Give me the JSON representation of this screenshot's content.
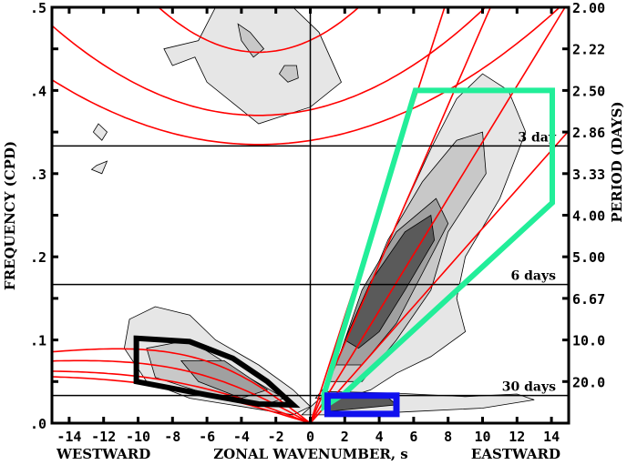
{
  "chart_data": {
    "type": "heatmap",
    "title": "",
    "xlabel": "ZONAL WAVENUMBER, s",
    "ylabel": "FREQUENCY (CPD)",
    "y2label": "PERIOD (DAYS)",
    "x_left_label": "WESTWARD",
    "x_right_label": "EASTWARD",
    "xlim": [
      -15,
      15
    ],
    "ylim": [
      0,
      0.5
    ],
    "xticks": [
      -14,
      -12,
      -10,
      -8,
      -6,
      -4,
      -2,
      0,
      2,
      4,
      6,
      8,
      10,
      12,
      14
    ],
    "xtick_labels": [
      "-14",
      "-12",
      "-10",
      "-8",
      "-6",
      "-4",
      "-2",
      "0",
      "2",
      "4",
      "6",
      "8",
      "10",
      "12",
      "14"
    ],
    "yticks": [
      0,
      0.1,
      0.2,
      0.3,
      0.4,
      0.5
    ],
    "ytick_labels": [
      ".0",
      ".1",
      ".2",
      ".3",
      ".4",
      ".5"
    ],
    "period_ticks": [
      0.5,
      0.45,
      0.4,
      0.35,
      0.3,
      0.25,
      0.2,
      0.15,
      0.1,
      0.05
    ],
    "period_labels": [
      "2.00",
      "2.22",
      "2.50",
      "2.86",
      "3.33",
      "4.00",
      "5.00",
      "6.67",
      "10.0",
      "20.0"
    ],
    "period_lines": [
      {
        "freq": 0.3333,
        "label": "3 day"
      },
      {
        "freq": 0.1667,
        "label": "6 days"
      },
      {
        "freq": 0.0333,
        "label": "30 days"
      }
    ],
    "contour_levels": [
      1.1,
      1.2,
      1.3,
      1.4
    ],
    "contour_colors": [
      "#e6e6e6",
      "#c8c8c8",
      "#a0a0a0",
      "#5a5a5a"
    ],
    "contour_regions": [
      {
        "level": 1.1,
        "points": [
          [
            0.3,
            0.03
          ],
          [
            1.5,
            0.06
          ],
          [
            3,
            0.13
          ],
          [
            5,
            0.24
          ],
          [
            7,
            0.33
          ],
          [
            8.5,
            0.39
          ],
          [
            10,
            0.42
          ],
          [
            11.5,
            0.4
          ],
          [
            12.5,
            0.35
          ],
          [
            11,
            0.27
          ],
          [
            9,
            0.2
          ],
          [
            8.5,
            0.15
          ],
          [
            9,
            0.11
          ],
          [
            7,
            0.08
          ],
          [
            5,
            0.06
          ],
          [
            3.5,
            0.04
          ],
          [
            2,
            0.03
          ]
        ]
      },
      {
        "level": 1.1,
        "points": [
          [
            -3.5,
            0.5
          ],
          [
            -1,
            0.5
          ],
          [
            0.5,
            0.47
          ],
          [
            1.8,
            0.41
          ],
          [
            0,
            0.38
          ],
          [
            -1.5,
            0.37
          ],
          [
            -3,
            0.36
          ],
          [
            -4.5,
            0.385
          ],
          [
            -6,
            0.41
          ],
          [
            -6.7,
            0.44
          ],
          [
            -8,
            0.43
          ],
          [
            -8.5,
            0.45
          ],
          [
            -6.5,
            0.46
          ],
          [
            -5.5,
            0.5
          ]
        ]
      },
      {
        "level": 1.1,
        "points": [
          [
            -10.5,
            0.125
          ],
          [
            -9,
            0.14
          ],
          [
            -7,
            0.13
          ],
          [
            -5.5,
            0.1
          ],
          [
            -3,
            0.07
          ],
          [
            -1,
            0.04
          ],
          [
            0,
            0.02
          ],
          [
            -1,
            0.01
          ],
          [
            -4,
            0.02
          ],
          [
            -7,
            0.03
          ],
          [
            -9.5,
            0.05
          ],
          [
            -10.8,
            0.09
          ]
        ]
      },
      {
        "level": 1.1,
        "points": [
          [
            -0.5,
            0.01
          ],
          [
            1,
            0.038
          ],
          [
            5,
            0.036
          ],
          [
            9,
            0.032
          ],
          [
            12,
            0.035
          ],
          [
            13,
            0.028
          ],
          [
            10,
            0.018
          ],
          [
            6,
            0.014
          ],
          [
            2,
            0.01
          ]
        ]
      },
      {
        "level": 1.1,
        "points": [
          [
            -12.3,
            0.36
          ],
          [
            -11.8,
            0.35
          ],
          [
            -12.1,
            0.34
          ],
          [
            -12.6,
            0.35
          ]
        ]
      },
      {
        "level": 1.1,
        "points": [
          [
            -12.4,
            0.31
          ],
          [
            -11.8,
            0.315
          ],
          [
            -12.1,
            0.3
          ],
          [
            -12.7,
            0.305
          ]
        ]
      },
      {
        "level": 1.2,
        "points": [
          [
            1,
            0.05
          ],
          [
            2.5,
            0.12
          ],
          [
            4.5,
            0.22
          ],
          [
            6.5,
            0.29
          ],
          [
            8.5,
            0.34
          ],
          [
            10,
            0.35
          ],
          [
            10.2,
            0.3
          ],
          [
            8,
            0.23
          ],
          [
            7,
            0.16
          ],
          [
            5,
            0.1
          ],
          [
            3,
            0.05
          ]
        ]
      },
      {
        "level": 1.2,
        "points": [
          [
            -9.5,
            0.09
          ],
          [
            -7,
            0.1
          ],
          [
            -4,
            0.06
          ],
          [
            -1.5,
            0.03
          ],
          [
            -3,
            0.02
          ],
          [
            -6,
            0.035
          ],
          [
            -9,
            0.055
          ]
        ]
      },
      {
        "level": 1.2,
        "points": [
          [
            -4.2,
            0.48
          ],
          [
            -3.5,
            0.47
          ],
          [
            -2.7,
            0.45
          ],
          [
            -3.3,
            0.44
          ],
          [
            -4,
            0.46
          ]
        ]
      },
      {
        "level": 1.2,
        "points": [
          [
            -1.5,
            0.43
          ],
          [
            -0.8,
            0.43
          ],
          [
            -0.7,
            0.415
          ],
          [
            -1.3,
            0.41
          ],
          [
            -1.8,
            0.42
          ]
        ]
      },
      {
        "level": 1.3,
        "points": [
          [
            1.5,
            0.07
          ],
          [
            3,
            0.16
          ],
          [
            5,
            0.23
          ],
          [
            7.3,
            0.27
          ],
          [
            8,
            0.24
          ],
          [
            6.5,
            0.18
          ],
          [
            5,
            0.12
          ],
          [
            3,
            0.07
          ]
        ]
      },
      {
        "level": 1.3,
        "points": [
          [
            -7.5,
            0.075
          ],
          [
            -5,
            0.075
          ],
          [
            -2.5,
            0.04
          ],
          [
            -4,
            0.03
          ],
          [
            -6.5,
            0.05
          ]
        ]
      },
      {
        "level": 1.4,
        "points": [
          [
            2,
            0.1
          ],
          [
            3.5,
            0.17
          ],
          [
            5.5,
            0.23
          ],
          [
            7,
            0.25
          ],
          [
            7.2,
            0.22
          ],
          [
            5.5,
            0.16
          ],
          [
            4,
            0.11
          ],
          [
            2.8,
            0.09
          ]
        ]
      },
      {
        "level": 1.4,
        "points": [
          [
            1,
            0.03
          ],
          [
            4.5,
            0.031
          ],
          [
            5,
            0.022
          ],
          [
            1,
            0.014
          ]
        ]
      }
    ],
    "dispersion_curves": {
      "kelvin_equivalent_depths_m": [
        12,
        25,
        50,
        90
      ],
      "equatorial_rossby_equivalent_depths_m": [
        8,
        12,
        25,
        50
      ],
      "inertio_gravity_parabolas": [
        {
          "f_min": 0.335,
          "s_min": -3,
          "curvature": 0.00054
        },
        {
          "f_min": 0.37,
          "s_min": -3,
          "curvature": 0.00075
        },
        {
          "f_min": 0.446,
          "s_min": -3,
          "curvature": 0.0016
        }
      ]
    },
    "filter_boxes": [
      {
        "name": "kelvin",
        "color": "#22ee99",
        "points": [
          [
            0.8,
            0.035
          ],
          [
            6.1,
            0.4
          ],
          [
            14.05,
            0.4
          ],
          [
            14.05,
            0.265
          ],
          [
            2.0,
            0.036
          ],
          [
            0.8,
            0.02
          ]
        ]
      },
      {
        "name": "rossby",
        "color": "#000000",
        "points": [
          [
            -10.1,
            0.102
          ],
          [
            -7,
            0.098
          ],
          [
            -4.5,
            0.078
          ],
          [
            -2.5,
            0.05
          ],
          [
            -1,
            0.022
          ],
          [
            -3,
            0.023
          ],
          [
            -6,
            0.034
          ],
          [
            -10.1,
            0.05
          ]
        ]
      },
      {
        "name": "mjo",
        "color": "#1010ee",
        "points": [
          [
            1,
            0.011
          ],
          [
            5,
            0.011
          ],
          [
            5,
            0.033
          ],
          [
            1,
            0.033
          ]
        ]
      }
    ],
    "grid": false,
    "legend": "none"
  }
}
